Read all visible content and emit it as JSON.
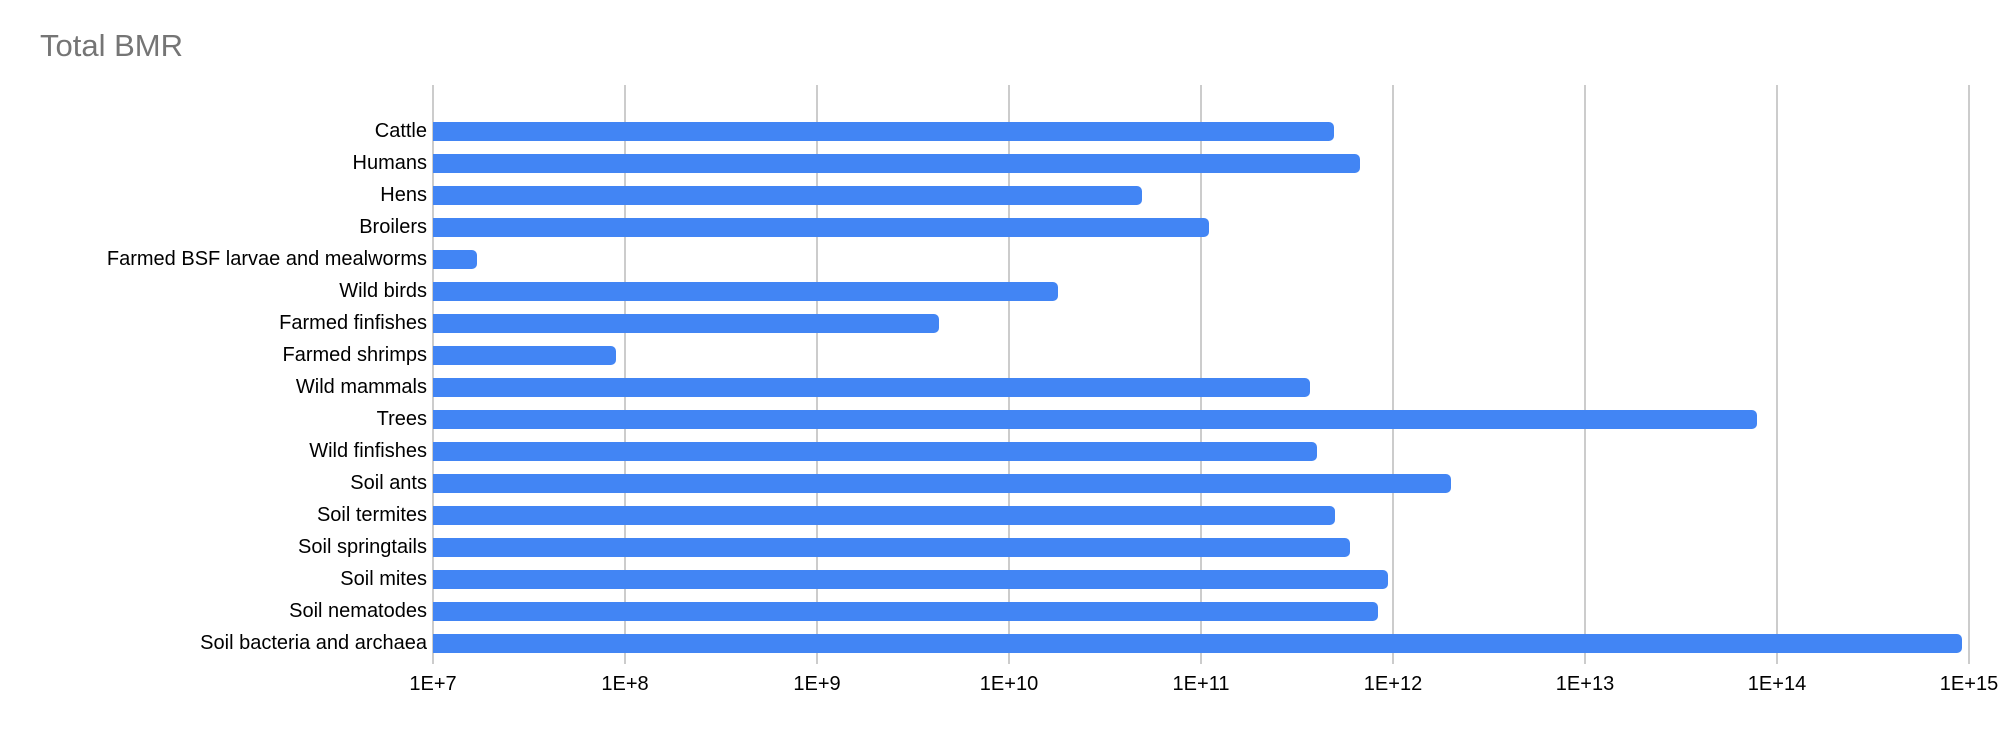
{
  "title": "Total BMR",
  "chart_data": {
    "type": "bar",
    "orientation": "horizontal",
    "title": "Total BMR",
    "xlabel": "",
    "ylabel": "",
    "x_scale": "log",
    "xlim": [
      10000000.0,
      1000000000000000.0
    ],
    "x_ticks": [
      "1E+7",
      "1E+8",
      "1E+9",
      "1E+10",
      "1E+11",
      "1E+12",
      "1E+13",
      "1E+14",
      "1E+15"
    ],
    "grid": true,
    "legend": "none",
    "bar_color": "#4285f4",
    "gridline_color": "#cccccc",
    "title_color": "#757575",
    "label_color": "#000000",
    "categories": [
      "Cattle",
      "Humans",
      "Hens",
      "Broilers",
      "Farmed BSF larvae and mealworms",
      "Wild birds",
      "Farmed finfishes",
      "Farmed shrimps",
      "Wild mammals",
      "Trees",
      "Wild finfishes",
      "Soil ants",
      "Soil termites",
      "Soil springtails",
      "Soil mites",
      "Soil nematodes",
      "Soil bacteria and archaea"
    ],
    "values": [
      490000000000.0,
      670000000000.0,
      49000000000.0,
      110000000000.0,
      17000000.0,
      18000000000.0,
      4300000000.0,
      90000000.0,
      370000000000.0,
      79000000000000.0,
      400000000000.0,
      2000000000000.0,
      500000000000.0,
      600000000000.0,
      940000000000.0,
      840000000000.0,
      920000000000000.0
    ]
  }
}
